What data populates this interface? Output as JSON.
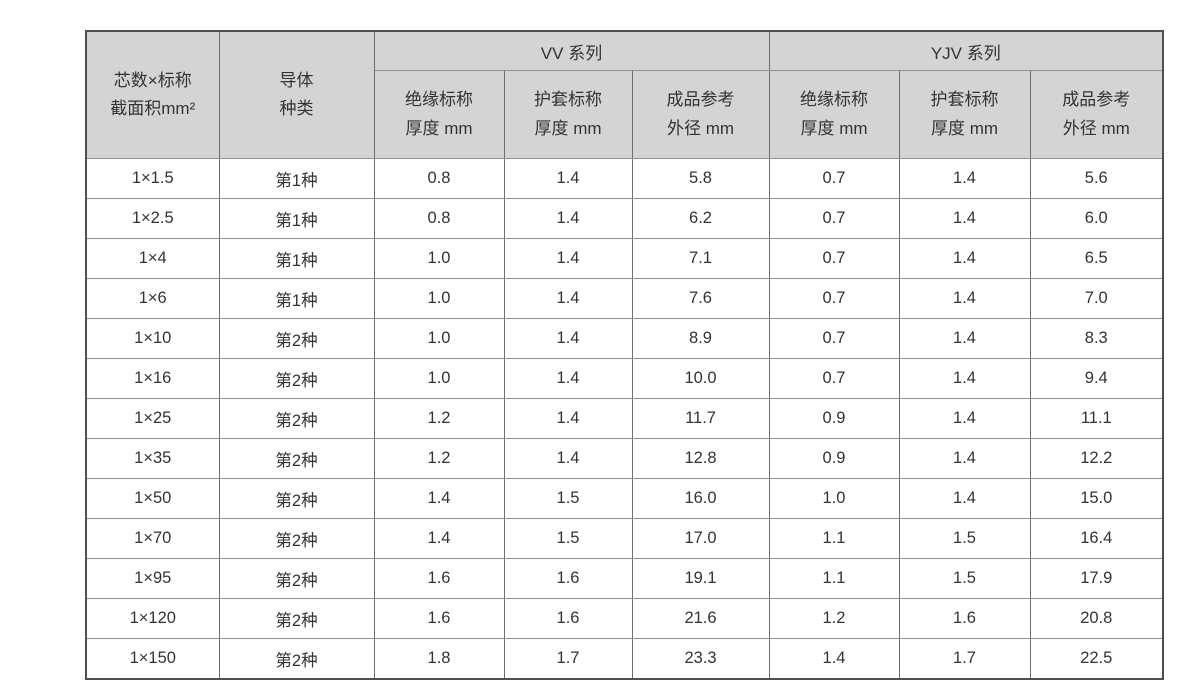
{
  "table": {
    "corner_header": {
      "line1": "芯数×标称",
      "line2": "截面积mm²"
    },
    "conductor_header": {
      "line1": "导体",
      "line2": "种类"
    },
    "groups": [
      {
        "label": "VV 系列"
      },
      {
        "label": "YJV 系列"
      }
    ],
    "sub_headers": [
      {
        "line1": "绝缘标称",
        "line2": "厚度 mm"
      },
      {
        "line1": "护套标称",
        "line2": "厚度 mm"
      },
      {
        "line1": "成品参考",
        "line2": "外径 mm"
      }
    ],
    "rows": [
      {
        "spec": "1×1.5",
        "conductor": "第1种",
        "vv": [
          "0.8",
          "1.4",
          "5.8"
        ],
        "yjv": [
          "0.7",
          "1.4",
          "5.6"
        ]
      },
      {
        "spec": "1×2.5",
        "conductor": "第1种",
        "vv": [
          "0.8",
          "1.4",
          "6.2"
        ],
        "yjv": [
          "0.7",
          "1.4",
          "6.0"
        ]
      },
      {
        "spec": "1×4",
        "conductor": "第1种",
        "vv": [
          "1.0",
          "1.4",
          "7.1"
        ],
        "yjv": [
          "0.7",
          "1.4",
          "6.5"
        ]
      },
      {
        "spec": "1×6",
        "conductor": "第1种",
        "vv": [
          "1.0",
          "1.4",
          "7.6"
        ],
        "yjv": [
          "0.7",
          "1.4",
          "7.0"
        ]
      },
      {
        "spec": "1×10",
        "conductor": "第2种",
        "vv": [
          "1.0",
          "1.4",
          "8.9"
        ],
        "yjv": [
          "0.7",
          "1.4",
          "8.3"
        ]
      },
      {
        "spec": "1×16",
        "conductor": "第2种",
        "vv": [
          "1.0",
          "1.4",
          "10.0"
        ],
        "yjv": [
          "0.7",
          "1.4",
          "9.4"
        ]
      },
      {
        "spec": "1×25",
        "conductor": "第2种",
        "vv": [
          "1.2",
          "1.4",
          "11.7"
        ],
        "yjv": [
          "0.9",
          "1.4",
          "11.1"
        ]
      },
      {
        "spec": "1×35",
        "conductor": "第2种",
        "vv": [
          "1.2",
          "1.4",
          "12.8"
        ],
        "yjv": [
          "0.9",
          "1.4",
          "12.2"
        ]
      },
      {
        "spec": "1×50",
        "conductor": "第2种",
        "vv": [
          "1.4",
          "1.5",
          "16.0"
        ],
        "yjv": [
          "1.0",
          "1.4",
          "15.0"
        ]
      },
      {
        "spec": "1×70",
        "conductor": "第2种",
        "vv": [
          "1.4",
          "1.5",
          "17.0"
        ],
        "yjv": [
          "1.1",
          "1.5",
          "16.4"
        ]
      },
      {
        "spec": "1×95",
        "conductor": "第2种",
        "vv": [
          "1.6",
          "1.6",
          "19.1"
        ],
        "yjv": [
          "1.1",
          "1.5",
          "17.9"
        ]
      },
      {
        "spec": "1×120",
        "conductor": "第2种",
        "vv": [
          "1.6",
          "1.6",
          "21.6"
        ],
        "yjv": [
          "1.2",
          "1.6",
          "20.8"
        ]
      },
      {
        "spec": "1×150",
        "conductor": "第2种",
        "vv": [
          "1.8",
          "1.7",
          "23.3"
        ],
        "yjv": [
          "1.4",
          "1.7",
          "22.5"
        ]
      }
    ],
    "colors": {
      "header_bg": "#d4d4d4",
      "border_outer": "#4f4f4f",
      "border_inner": "#6e6e6e",
      "text": "#333333"
    }
  }
}
